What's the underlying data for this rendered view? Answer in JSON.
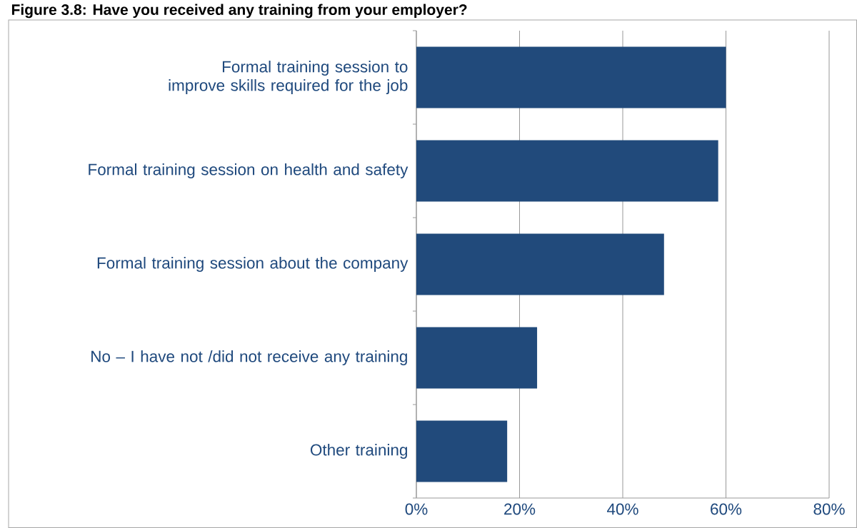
{
  "chart_data": {
    "type": "bar",
    "orientation": "horizontal",
    "title": "Figure 3.8: Have you received any training from your employer?",
    "categories": [
      "Formal training session to improve skills required for the job",
      "Formal training session on health and safety",
      "Formal training session about the company",
      "No – I have not /did not receive any training",
      "Other training"
    ],
    "values": [
      60,
      58.5,
      48,
      23.4,
      17.6
    ],
    "color": "#214a7b",
    "xlim": [
      0,
      80
    ],
    "xticks": [
      {
        "value": 0,
        "label": "0%"
      },
      {
        "value": 20,
        "label": "20%"
      },
      {
        "value": 40,
        "label": "40%"
      },
      {
        "value": 60,
        "label": "60%"
      },
      {
        "value": 80,
        "label": "80%"
      }
    ],
    "grid": "x"
  }
}
